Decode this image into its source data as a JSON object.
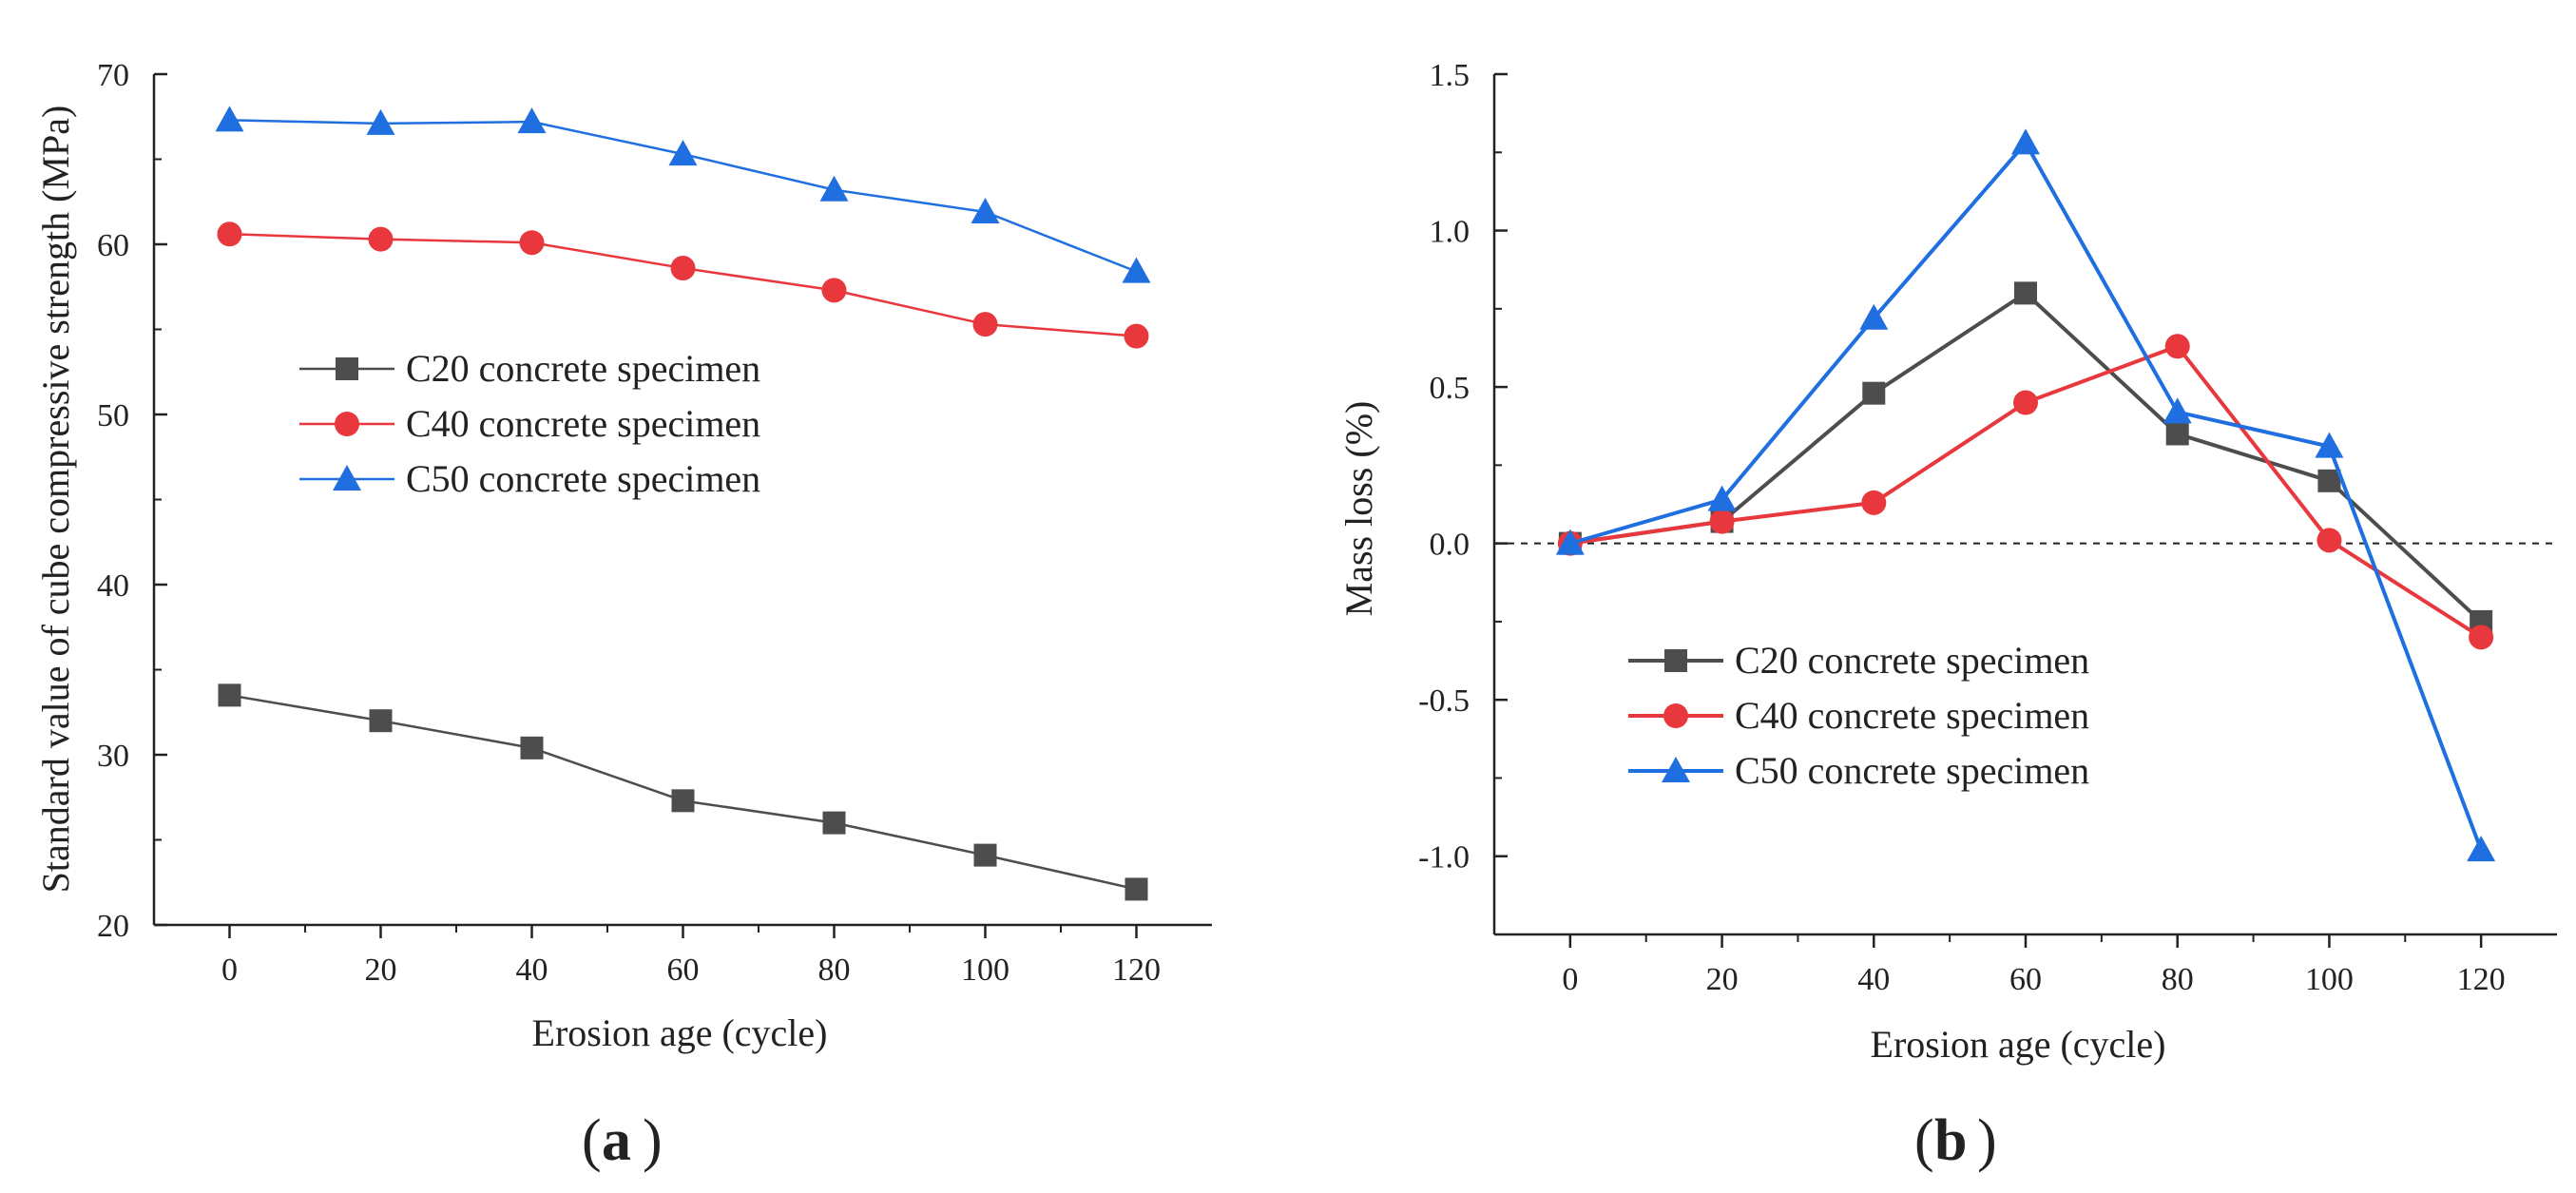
{
  "chart_data": [
    {
      "id": "a",
      "type": "line",
      "caption": "a",
      "xlabel": "Erosion age (cycle)",
      "ylabel": "Standard value of cube compressive strength (MPa)",
      "xlim": [
        -10,
        130
      ],
      "ylim": [
        20,
        70
      ],
      "xticks": [
        0,
        20,
        40,
        60,
        80,
        100,
        120
      ],
      "yticks": [
        20,
        30,
        40,
        50,
        60,
        70
      ],
      "yminor": [
        25,
        35,
        45,
        55,
        65
      ],
      "xminor": [
        10,
        30,
        50,
        70,
        90,
        110
      ],
      "x": [
        0,
        20,
        40,
        60,
        80,
        100,
        120
      ],
      "series": [
        {
          "name": "C20 concrete specimen",
          "color": "#4d4d4d",
          "marker": "square",
          "values": [
            33.5,
            32.0,
            30.4,
            27.3,
            26.0,
            24.1,
            22.1
          ]
        },
        {
          "name": "C40 concrete specimen",
          "color": "#e8383d",
          "marker": "circle",
          "values": [
            60.6,
            60.3,
            60.1,
            58.6,
            57.3,
            55.3,
            54.6
          ]
        },
        {
          "name": "C50 concrete specimen",
          "color": "#1f6fe0",
          "marker": "triangle",
          "values": [
            67.3,
            67.1,
            67.2,
            65.3,
            63.2,
            61.9,
            58.4
          ]
        }
      ]
    },
    {
      "id": "b",
      "type": "line",
      "caption": "b",
      "xlabel": "Erosion age (cycle)",
      "ylabel": "Mass loss (%)",
      "xlim": [
        -10,
        130
      ],
      "ylim": [
        -1.25,
        1.5
      ],
      "xticks": [
        0,
        20,
        40,
        60,
        80,
        100,
        120
      ],
      "yticks": [
        -1.0,
        -0.5,
        0.0,
        0.5,
        1.0,
        1.5
      ],
      "ytick_labels": [
        "-1.0",
        "-0.5",
        "0.0",
        "0.5",
        "1.0",
        "1.5"
      ],
      "yminor": [
        -1.25,
        -0.75,
        -0.25,
        0.25,
        0.75,
        1.25
      ],
      "xminor": [
        10,
        30,
        50,
        70,
        90,
        110
      ],
      "reference_line": 0,
      "x": [
        0,
        20,
        40,
        60,
        80,
        100,
        120
      ],
      "series": [
        {
          "name": "C20 concrete specimen",
          "color": "#4d4d4d",
          "marker": "square",
          "values": [
            0.0,
            0.07,
            0.48,
            0.8,
            0.35,
            0.2,
            -0.25
          ]
        },
        {
          "name": "C40 concrete specimen",
          "color": "#e8383d",
          "marker": "circle",
          "values": [
            0.0,
            0.07,
            0.13,
            0.45,
            0.63,
            0.01,
            -0.3
          ]
        },
        {
          "name": "C50 concrete specimen",
          "color": "#1f6fe0",
          "marker": "triangle",
          "values": [
            0.0,
            0.14,
            0.72,
            1.28,
            0.42,
            0.31,
            -0.98
          ]
        }
      ]
    }
  ]
}
